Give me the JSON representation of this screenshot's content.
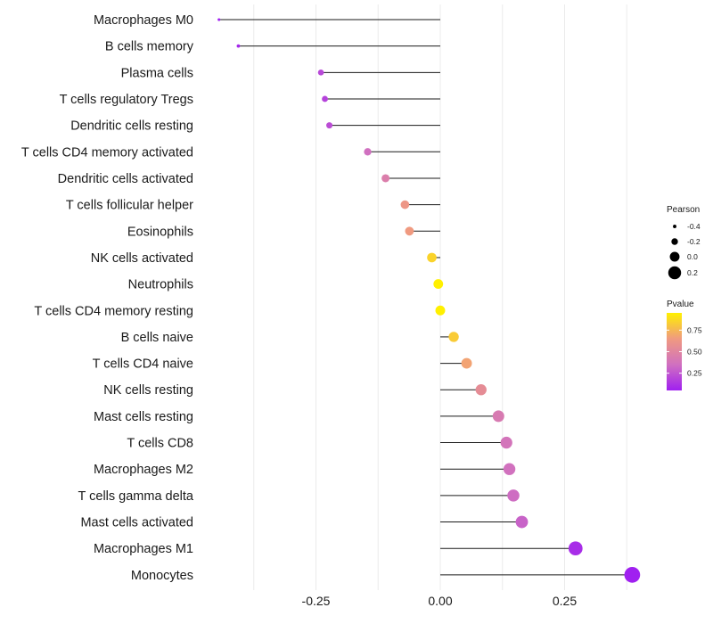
{
  "chart_data": {
    "type": "lollipop",
    "title": "",
    "xlabel": "",
    "ylabel": "",
    "xlim": [
      -0.45,
      0.42
    ],
    "x_ticks": [
      -0.25,
      0.0,
      0.25
    ],
    "x_tick_labels": [
      "-0.25",
      "0.00",
      "0.25"
    ],
    "gridlines_x": [
      -0.375,
      -0.125,
      0.125,
      0.375
    ],
    "categories": [
      "Macrophages M0",
      "B cells memory",
      "Plasma cells",
      "T cells regulatory  Tregs",
      "Dendritic cells resting",
      "T cells CD4 memory activated",
      "Dendritic cells activated",
      "T cells follicular helper",
      "Eosinophils",
      "NK cells activated",
      "Neutrophils",
      "T cells CD4 memory resting",
      "B cells naive",
      "T cells CD4 naive",
      "NK cells resting",
      "Mast cells resting",
      "T cells CD8",
      "Macrophages M2",
      "T cells gamma delta",
      "Mast cells activated",
      "Macrophages M1",
      "Monocytes"
    ],
    "values": [
      -0.445,
      -0.406,
      -0.24,
      -0.232,
      -0.223,
      -0.146,
      -0.11,
      -0.071,
      -0.062,
      -0.017,
      -0.004,
      0.0,
      0.027,
      0.053,
      0.082,
      0.117,
      0.133,
      0.139,
      0.147,
      0.164,
      0.272,
      0.386
    ],
    "pvalues": [
      0.05,
      0.08,
      0.2,
      0.18,
      0.22,
      0.35,
      0.45,
      0.62,
      0.65,
      0.85,
      0.98,
      0.99,
      0.82,
      0.68,
      0.55,
      0.42,
      0.38,
      0.36,
      0.34,
      0.3,
      0.1,
      0.05
    ],
    "legend_size": {
      "title": "Pearson",
      "values": [
        -0.4,
        -0.2,
        0.0,
        0.2
      ],
      "labels": [
        "-0.4",
        "-0.2",
        "0.0",
        "0.2"
      ]
    },
    "legend_color": {
      "title": "Pvalue",
      "range": [
        0.05,
        0.95
      ],
      "ticks": [
        0.25,
        0.5,
        0.75
      ],
      "tick_labels": [
        "0.25",
        "0.50",
        "0.75"
      ],
      "colors": [
        "#A020F0",
        "#D070C0",
        "#F09A80",
        "#FFF000"
      ]
    }
  }
}
